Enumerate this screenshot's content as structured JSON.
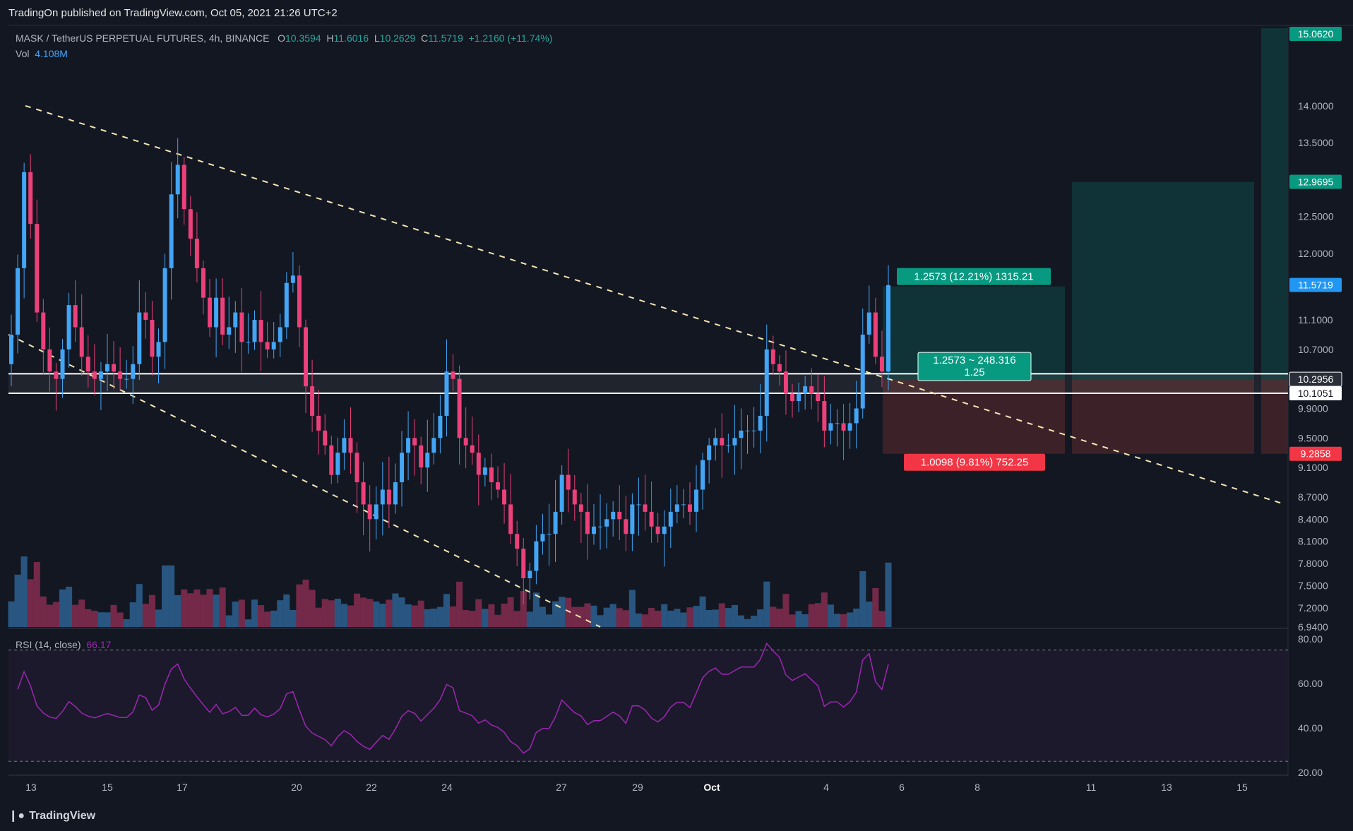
{
  "header": {
    "published": "TradingOn published on TradingView.com, Oct 05, 2021 21:26 UTC+2"
  },
  "legend": {
    "symbol": "MASK / TetherUS PERPETUAL FUTURES, 4h, BINANCE",
    "open_label": "O",
    "open": "10.3594",
    "high_label": "H",
    "high": "11.6016",
    "low_label": "L",
    "low": "10.2629",
    "close_label": "C",
    "close": "11.5719",
    "change": "+1.2160 (+11.74%)",
    "vol_label": "Vol",
    "vol": "4.108M"
  },
  "rsi_legend": {
    "label": "RSI (14, close)",
    "value": "66.17"
  },
  "footer": {
    "brand": "TradingView"
  },
  "colors": {
    "up": "#42a5f5",
    "down": "#ec407a",
    "bg": "#131722",
    "grid": "#2a2e39",
    "profit": "#0f3336",
    "loss": "#3c2228",
    "rsi": "#9c27b0"
  },
  "chart_data": {
    "type": "candlestick",
    "timeframe": "4h",
    "x_ticks": [
      "13",
      "15",
      "17",
      "20",
      "22",
      "24",
      "27",
      "29",
      "Oct",
      "4",
      "6",
      "8",
      "11",
      "13",
      "15"
    ],
    "price_ticks": [
      "14.0000",
      "13.5000",
      "12.5000",
      "12.0000",
      "11.1000",
      "10.7000",
      "9.9000",
      "9.5000",
      "9.1000",
      "8.7000",
      "8.4000",
      "8.1000",
      "7.8000",
      "7.5000",
      "7.2000",
      "6.9400"
    ],
    "price_labels": [
      {
        "text": "15.0620",
        "kind": "target"
      },
      {
        "text": "12.9695",
        "kind": "target"
      },
      {
        "text": "11.5719",
        "kind": "last"
      },
      {
        "text": "10.2956",
        "kind": "entry"
      },
      {
        "text": "10.1051",
        "kind": "level"
      },
      {
        "text": "9.2858",
        "kind": "stop"
      }
    ],
    "rsi_ticks": [
      "80.00",
      "60.00",
      "40.00",
      "20.00"
    ],
    "position": {
      "profit_label": "1.2573 (12.21%) 1315.21",
      "entry_label": "1.2573 ~ 248.316",
      "entry_ratio": "1.25",
      "loss_label": "1.0098 (9.81%) 752.25",
      "entry": 10.2956,
      "target": 11.5529,
      "stop": 9.2858
    },
    "levels": [
      10.37,
      10.1051
    ],
    "closes": [
      10.9,
      11.8,
      13.1,
      12.4,
      11.2,
      10.7,
      10.4,
      10.3,
      10.7,
      11.3,
      11.0,
      10.6,
      10.4,
      10.3,
      10.4,
      10.5,
      10.4,
      10.3,
      10.3,
      10.5,
      11.2,
      11.1,
      10.6,
      10.8,
      11.8,
      12.8,
      13.2,
      12.6,
      12.2,
      11.8,
      11.4,
      11.0,
      11.4,
      10.9,
      11.0,
      11.2,
      10.8,
      10.8,
      11.1,
      10.8,
      10.7,
      10.8,
      11.0,
      11.6,
      11.7,
      11.0,
      10.2,
      9.8,
      9.6,
      9.4,
      9.0,
      9.3,
      9.5,
      9.3,
      8.9,
      8.6,
      8.4,
      8.6,
      8.8,
      8.6,
      8.9,
      9.3,
      9.5,
      9.4,
      9.1,
      9.3,
      9.5,
      9.8,
      10.4,
      10.3,
      9.5,
      9.4,
      9.3,
      9.0,
      9.1,
      8.9,
      8.8,
      8.6,
      8.2,
      8.0,
      7.6,
      7.7,
      8.1,
      8.2,
      8.2,
      8.5,
      9.0,
      8.8,
      8.6,
      8.5,
      8.2,
      8.3,
      8.3,
      8.4,
      8.5,
      8.4,
      8.2,
      8.6,
      8.6,
      8.5,
      8.3,
      8.2,
      8.3,
      8.5,
      8.6,
      8.6,
      8.5,
      8.8,
      9.2,
      9.4,
      9.5,
      9.4,
      9.4,
      9.5,
      9.6,
      9.6,
      9.6,
      9.8,
      10.7,
      10.5,
      10.4,
      10.1,
      10.0,
      10.1,
      10.2,
      10.1,
      10.0,
      9.6,
      9.7,
      9.7,
      9.6,
      9.7,
      9.9,
      10.9,
      11.2,
      10.6,
      10.4,
      11.57
    ],
    "volume_note": "volume histogram under price panel"
  }
}
